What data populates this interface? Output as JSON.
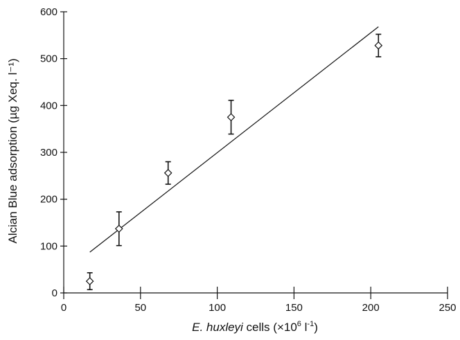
{
  "chart_data": {
    "type": "scatter",
    "xlabel": {
      "italic": "E. huxleyi",
      "normal": " cells (×10",
      "sup1": "6",
      "mid": " l",
      "sup2": "-1",
      "end": ")"
    },
    "ylabel": "Alcian Blue adsorption (µg Xeq. l⁻¹)",
    "xlim": [
      0,
      250
    ],
    "ylim": [
      0,
      600
    ],
    "xticks": [
      0,
      50,
      100,
      150,
      200,
      250
    ],
    "yticks": [
      0,
      100,
      200,
      300,
      400,
      500,
      600
    ],
    "grid": false,
    "legend": "none",
    "points": [
      {
        "x": 17,
        "y": 25,
        "err": 18
      },
      {
        "x": 36,
        "y": 137,
        "err": 36
      },
      {
        "x": 68,
        "y": 256,
        "err": 24
      },
      {
        "x": 109,
        "y": 375,
        "err": 36
      },
      {
        "x": 205,
        "y": 528,
        "err": 24
      }
    ],
    "fit_line": {
      "x": [
        17,
        205
      ],
      "y": [
        87,
        568
      ]
    }
  }
}
